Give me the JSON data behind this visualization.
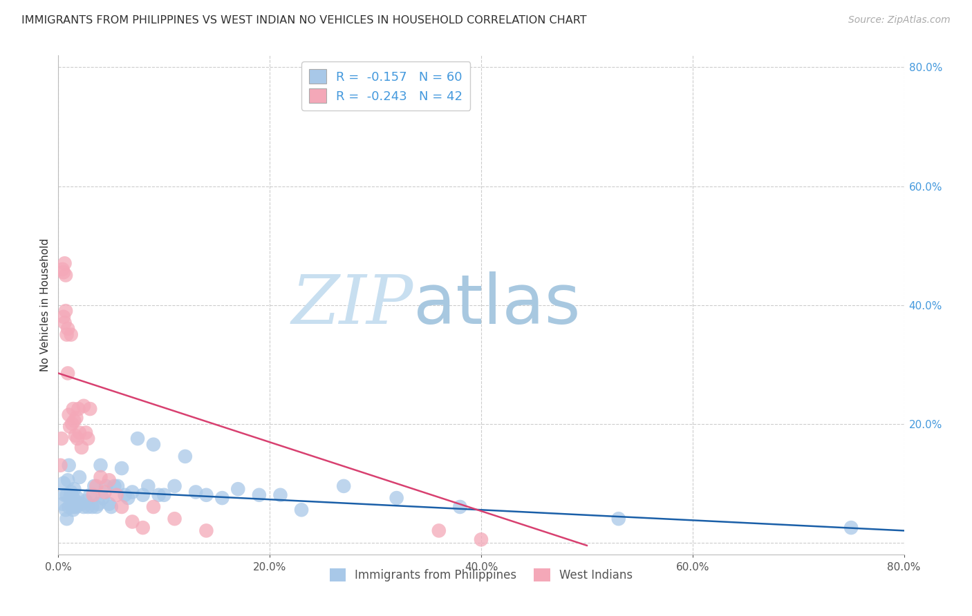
{
  "title": "IMMIGRANTS FROM PHILIPPINES VS WEST INDIAN NO VEHICLES IN HOUSEHOLD CORRELATION CHART",
  "source": "Source: ZipAtlas.com",
  "ylabel": "No Vehicles in Household",
  "xlim": [
    0.0,
    0.8
  ],
  "ylim": [
    -0.02,
    0.82
  ],
  "xticks": [
    0.0,
    0.2,
    0.4,
    0.6,
    0.8
  ],
  "yticks_right": [
    0.0,
    0.2,
    0.4,
    0.6,
    0.8
  ],
  "series1_color": "#a8c8e8",
  "series2_color": "#f4a8b8",
  "trend1_color": "#1a5fa8",
  "trend2_color": "#d84070",
  "watermark_zip": "ZIP",
  "watermark_atlas": "atlas",
  "watermark_color_zip": "#c8dff0",
  "watermark_color_atlas": "#a8c8e0",
  "background_color": "#ffffff",
  "grid_color": "#cccccc",
  "title_color": "#303030",
  "source_color": "#aaaaaa",
  "ylabel_color": "#303030",
  "tick_color_right": "#4499dd",
  "tick_color_bottom": "#555555",
  "legend_text_color": "#4499dd",
  "bottom_legend_label1": "Immigrants from Philippines",
  "bottom_legend_label2": "West Indians",
  "legend_line1": "R =  -0.157   N = 60",
  "legend_line2": "R =  -0.243   N = 42",
  "blue_trend_x0": 0.0,
  "blue_trend_y0": 0.09,
  "blue_trend_x1": 0.8,
  "blue_trend_y1": 0.02,
  "pink_trend_x0": 0.0,
  "pink_trend_y0": 0.285,
  "pink_trend_x1": 0.5,
  "pink_trend_y1": -0.005,
  "series1_x": [
    0.004,
    0.005,
    0.006,
    0.007,
    0.008,
    0.008,
    0.009,
    0.01,
    0.01,
    0.011,
    0.012,
    0.013,
    0.014,
    0.014,
    0.015,
    0.015,
    0.016,
    0.017,
    0.018,
    0.02,
    0.022,
    0.024,
    0.026,
    0.028,
    0.03,
    0.032,
    0.034,
    0.036,
    0.038,
    0.04,
    0.042,
    0.045,
    0.048,
    0.05,
    0.053,
    0.056,
    0.06,
    0.063,
    0.066,
    0.07,
    0.075,
    0.08,
    0.085,
    0.09,
    0.095,
    0.1,
    0.11,
    0.12,
    0.13,
    0.14,
    0.155,
    0.17,
    0.19,
    0.21,
    0.23,
    0.27,
    0.32,
    0.38,
    0.53,
    0.75
  ],
  "series1_y": [
    0.065,
    0.1,
    0.08,
    0.055,
    0.08,
    0.04,
    0.105,
    0.13,
    0.06,
    0.075,
    0.085,
    0.06,
    0.075,
    0.055,
    0.06,
    0.09,
    0.07,
    0.06,
    0.075,
    0.11,
    0.065,
    0.06,
    0.07,
    0.06,
    0.08,
    0.06,
    0.095,
    0.06,
    0.065,
    0.13,
    0.075,
    0.095,
    0.065,
    0.06,
    0.095,
    0.095,
    0.125,
    0.08,
    0.075,
    0.085,
    0.175,
    0.08,
    0.095,
    0.165,
    0.08,
    0.08,
    0.095,
    0.145,
    0.085,
    0.08,
    0.075,
    0.09,
    0.08,
    0.08,
    0.055,
    0.095,
    0.075,
    0.06,
    0.04,
    0.025
  ],
  "series2_x": [
    0.002,
    0.003,
    0.004,
    0.005,
    0.005,
    0.006,
    0.006,
    0.007,
    0.007,
    0.008,
    0.009,
    0.009,
    0.01,
    0.011,
    0.012,
    0.013,
    0.014,
    0.015,
    0.016,
    0.017,
    0.018,
    0.019,
    0.02,
    0.022,
    0.024,
    0.026,
    0.028,
    0.03,
    0.033,
    0.036,
    0.04,
    0.044,
    0.048,
    0.055,
    0.06,
    0.07,
    0.08,
    0.09,
    0.11,
    0.14,
    0.36,
    0.4
  ],
  "series2_y": [
    0.13,
    0.175,
    0.46,
    0.455,
    0.38,
    0.47,
    0.37,
    0.45,
    0.39,
    0.35,
    0.285,
    0.36,
    0.215,
    0.195,
    0.35,
    0.2,
    0.225,
    0.205,
    0.18,
    0.21,
    0.175,
    0.225,
    0.185,
    0.16,
    0.23,
    0.185,
    0.175,
    0.225,
    0.08,
    0.095,
    0.11,
    0.085,
    0.105,
    0.08,
    0.06,
    0.035,
    0.025,
    0.06,
    0.04,
    0.02,
    0.02,
    0.005
  ]
}
